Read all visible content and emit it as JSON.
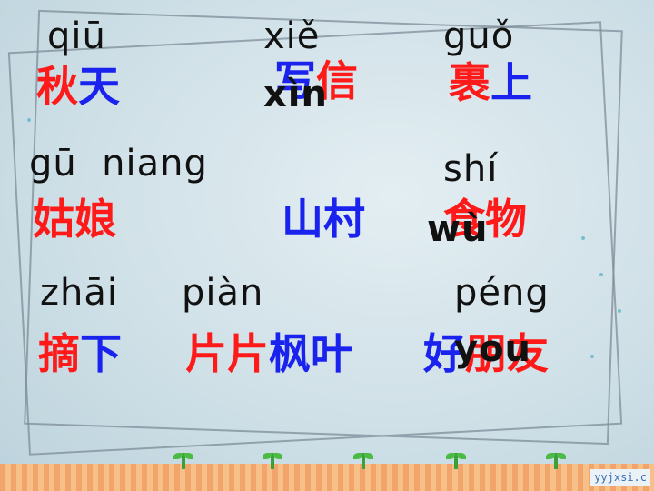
{
  "rows": [
    {
      "pinyin": [
        "qiū",
        "xiě",
        "guǒ",
        "xìn"
      ],
      "words": [
        [
          {
            "t": "秋",
            "c": "red"
          },
          {
            "t": "天",
            "c": "blue"
          }
        ],
        [
          {
            "t": "写",
            "c": "blue"
          },
          {
            "t": "信",
            "c": "red"
          }
        ],
        [
          {
            "t": "裹",
            "c": "red"
          },
          {
            "t": "上",
            "c": "blue"
          }
        ]
      ]
    },
    {
      "pinyin": [
        "gū  niang",
        "shí",
        "wù"
      ],
      "words": [
        [
          {
            "t": "姑",
            "c": "red"
          },
          {
            "t": "娘",
            "c": "red"
          }
        ],
        [
          {
            "t": "山",
            "c": "blue"
          },
          {
            "t": "村",
            "c": "blue"
          }
        ],
        [
          {
            "t": "食",
            "c": "red"
          },
          {
            "t": "物",
            "c": "red"
          }
        ]
      ]
    },
    {
      "pinyin": [
        "zhāi",
        "piàn",
        "péng",
        "you"
      ],
      "words": [
        [
          {
            "t": "摘",
            "c": "red"
          },
          {
            "t": "下",
            "c": "blue"
          }
        ],
        [
          {
            "t": "片",
            "c": "red"
          },
          {
            "t": "片",
            "c": "red"
          },
          {
            "t": "枫",
            "c": "blue"
          },
          {
            "t": "叶",
            "c": "blue"
          }
        ],
        [
          {
            "t": "好",
            "c": "blue"
          },
          {
            "t": "朋",
            "c": "red"
          },
          {
            "t": "友",
            "c": "red"
          }
        ]
      ]
    }
  ],
  "logo": "yyjxsi.c"
}
